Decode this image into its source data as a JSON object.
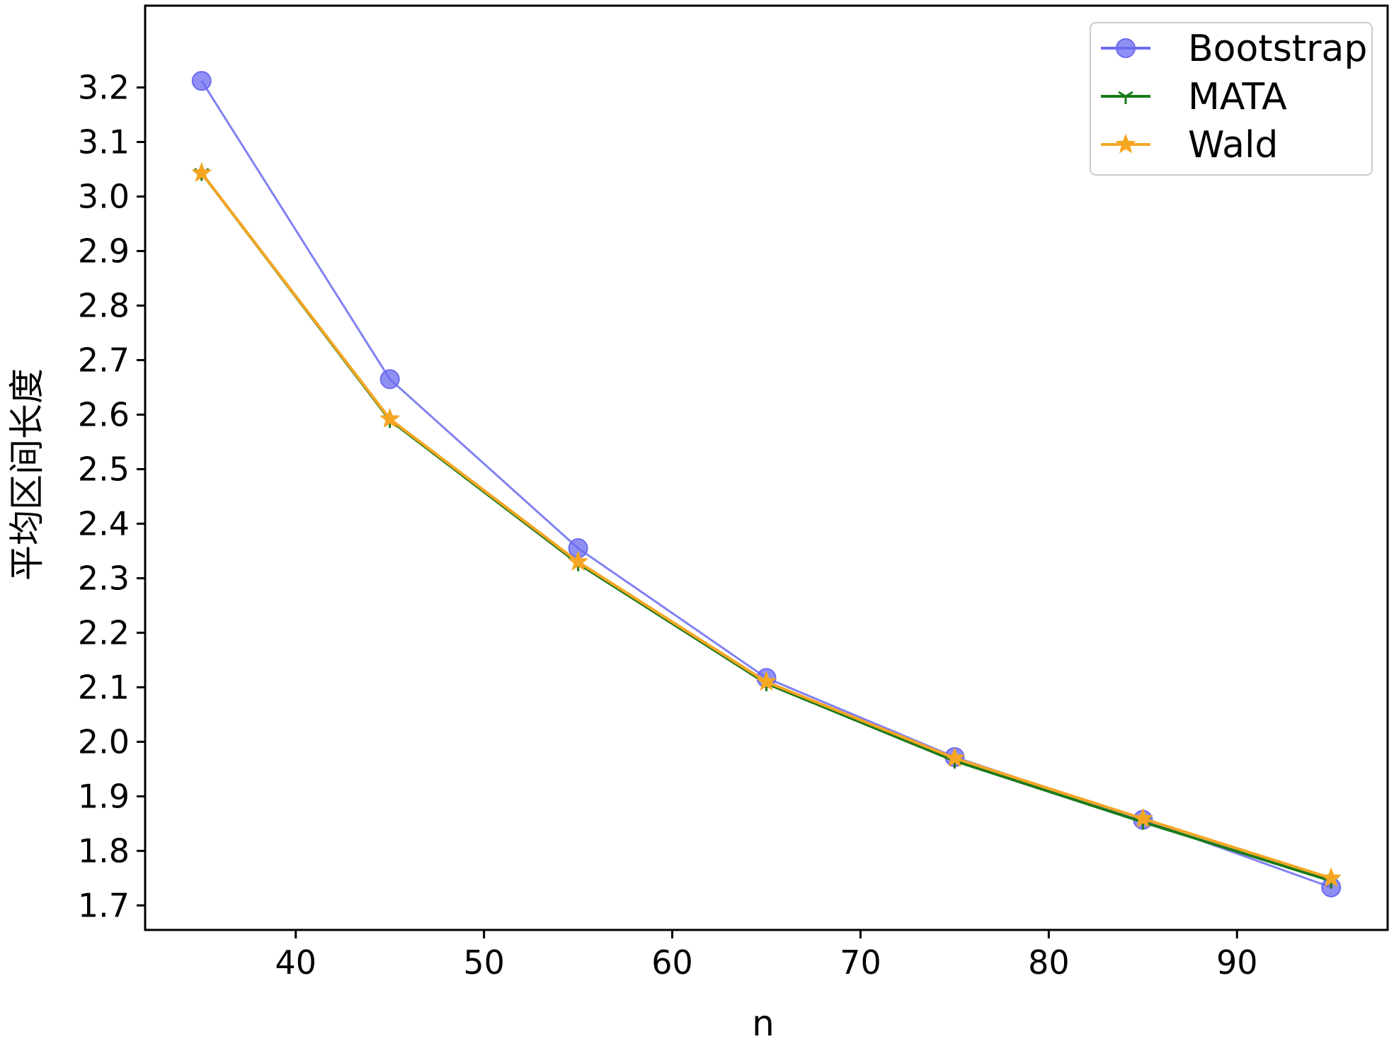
{
  "chart_data": {
    "type": "line",
    "xlabel": "n",
    "ylabel": "平均区间长度",
    "xlim": [
      32,
      98
    ],
    "ylim": [
      1.655,
      3.35
    ],
    "xticks": [
      40,
      50,
      60,
      70,
      80,
      90
    ],
    "yticks": [
      1.7,
      1.8,
      1.9,
      2.0,
      2.1,
      2.2,
      2.3,
      2.4,
      2.5,
      2.6,
      2.7,
      2.8,
      2.9,
      3.0,
      3.1,
      3.2
    ],
    "ytick_labels": [
      "1.7",
      "1.8",
      "1.9",
      "2.0",
      "2.1",
      "2.2",
      "2.3",
      "2.4",
      "2.5",
      "2.6",
      "2.7",
      "2.8",
      "2.9",
      "3.0",
      "3.1",
      "3.2"
    ],
    "grid": false,
    "legend_position": "top-right",
    "x": [
      35,
      45,
      55,
      65,
      75,
      85,
      95
    ],
    "series": [
      {
        "name": "Bootstrap",
        "color": "#6b6bf0",
        "marker": "circle",
        "values": [
          3.212,
          2.665,
          2.355,
          2.117,
          1.972,
          1.857,
          1.733
        ]
      },
      {
        "name": "MATA",
        "color": "#1a7a1a",
        "marker": "tri",
        "values": [
          3.043,
          2.59,
          2.327,
          2.107,
          1.965,
          1.853,
          1.745
        ]
      },
      {
        "name": "Wald",
        "color": "#f5a623",
        "marker": "star",
        "values": [
          3.043,
          2.592,
          2.33,
          2.11,
          1.97,
          1.859,
          1.75
        ]
      }
    ]
  }
}
